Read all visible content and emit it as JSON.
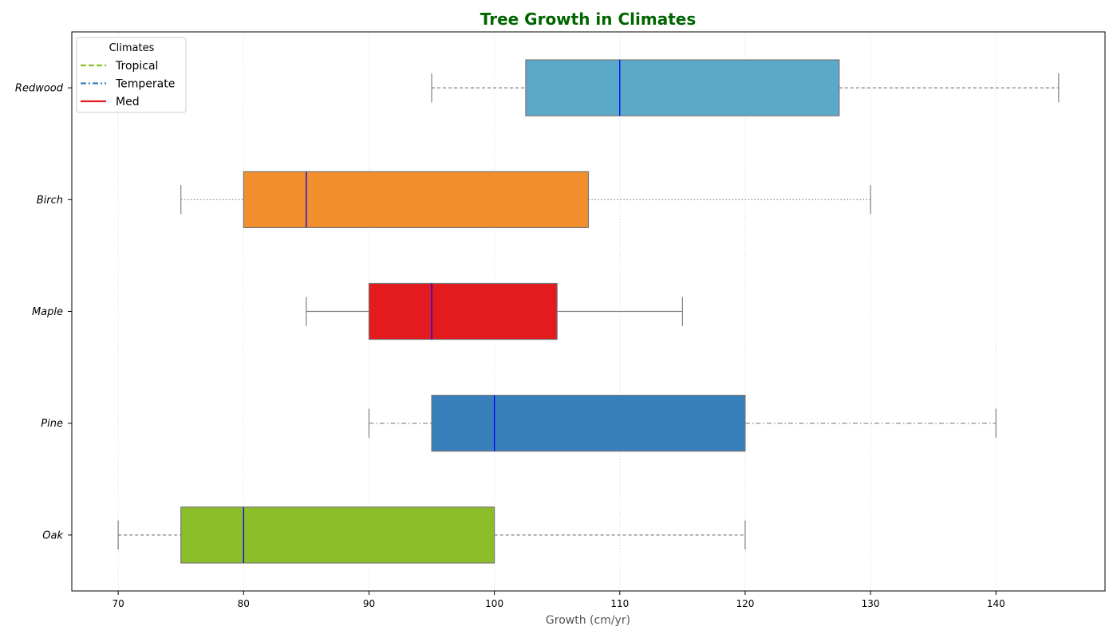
{
  "chart_data": {
    "type": "boxplot",
    "orientation": "horizontal",
    "title": "Tree Growth in Climates",
    "xlabel": "Growth (cm/yr)",
    "ylabel": "",
    "xlim": [
      66.3,
      148.7
    ],
    "xticks": [
      70,
      80,
      90,
      100,
      110,
      120,
      130,
      140
    ],
    "grid": "x-dotted",
    "categories": [
      "Oak",
      "Pine",
      "Maple",
      "Birch",
      "Redwood"
    ],
    "boxes": [
      {
        "category": "Oak",
        "whisker_low": 70,
        "q1": 75,
        "median": 80,
        "q3": 100,
        "whisker_high": 120,
        "color": "#8bbe29",
        "whisker_style": "dashed"
      },
      {
        "category": "Pine",
        "whisker_low": 90,
        "q1": 95,
        "median": 100,
        "q3": 120,
        "whisker_high": 140,
        "color": "#377fbb",
        "whisker_style": "dashdot"
      },
      {
        "category": "Maple",
        "whisker_low": 85,
        "q1": 90,
        "median": 95,
        "q3": 105,
        "whisker_high": 115,
        "color": "#e41b1e",
        "whisker_style": "solid"
      },
      {
        "category": "Birch",
        "whisker_low": 75,
        "q1": 80,
        "median": 85,
        "q3": 107.5,
        "whisker_high": 130,
        "color": "#f28e2b",
        "whisker_style": "dotted"
      },
      {
        "category": "Redwood",
        "whisker_low": 95,
        "q1": 102.5,
        "median": 110,
        "q3": 127.5,
        "whisker_high": 145,
        "color": "#5aa9c9",
        "whisker_style": "dashed"
      }
    ],
    "median_color": "#0000ff",
    "whisker_color": "#808080",
    "legend": {
      "title": "Climates",
      "position": "top-left",
      "entries": [
        {
          "label": "Tropical",
          "color": "#8bbe29",
          "style": "dashed"
        },
        {
          "label": "Temperate",
          "color": "#377fbb",
          "style": "dashdot"
        },
        {
          "label": "Med",
          "color": "#e41b1e",
          "style": "solid"
        }
      ]
    }
  }
}
